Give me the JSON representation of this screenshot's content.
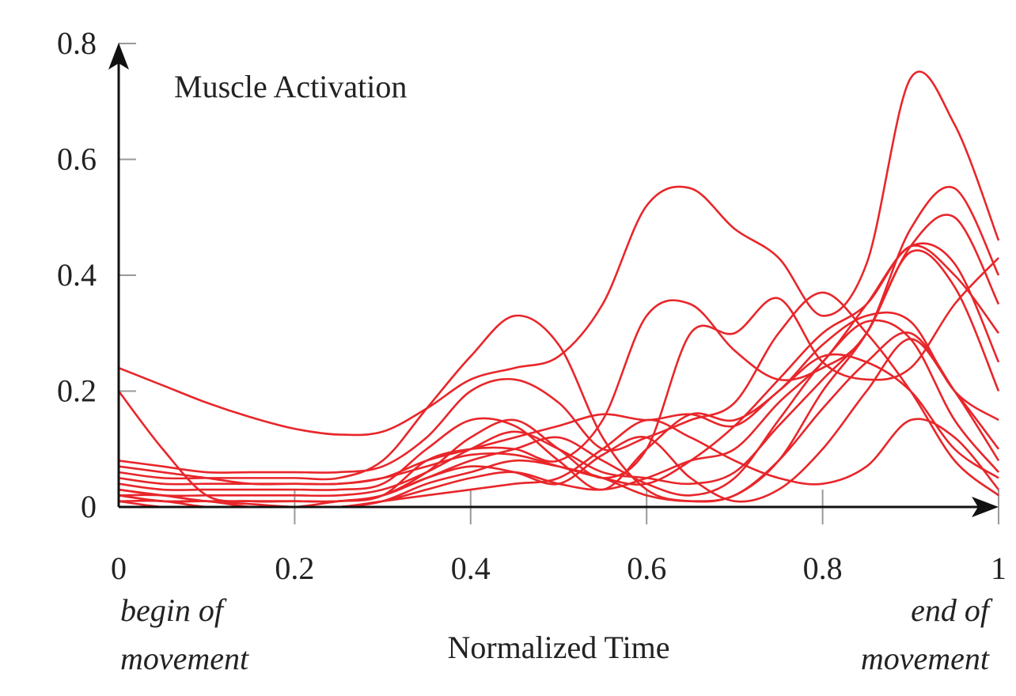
{
  "chart_data": {
    "type": "line",
    "title": "",
    "xlabel": "Normalized Time",
    "ylabel": "Muscle Activation",
    "annotations": {
      "begin": [
        "begin of",
        "movement"
      ],
      "end": [
        "end of",
        "movement"
      ]
    },
    "xlim": [
      0,
      1
    ],
    "ylim": [
      0,
      0.8
    ],
    "xticks": [
      0,
      0.2,
      0.4,
      0.6,
      0.8,
      1
    ],
    "xtick_labels": [
      "0",
      "0.2",
      "0.4",
      "0.6",
      "0.8",
      "1"
    ],
    "yticks": [
      0,
      0.2,
      0.4,
      0.6,
      0.8
    ],
    "ytick_labels": [
      "0",
      "0.2",
      "0.4",
      "0.6",
      "0.8"
    ],
    "grid": false,
    "line_color": "#e8262a",
    "x": [
      0,
      0.05,
      0.1,
      0.15,
      0.2,
      0.25,
      0.3,
      0.35,
      0.4,
      0.45,
      0.5,
      0.55,
      0.6,
      0.65,
      0.7,
      0.75,
      0.8,
      0.85,
      0.9,
      0.95,
      1.0
    ],
    "series": [
      {
        "values": [
          0.24,
          0.21,
          0.18,
          0.155,
          0.135,
          0.125,
          0.13,
          0.17,
          0.22,
          0.24,
          0.26,
          0.35,
          0.52,
          0.55,
          0.48,
          0.43,
          0.33,
          0.42,
          0.74,
          0.66,
          0.46
        ]
      },
      {
        "values": [
          0.06,
          0.05,
          0.05,
          0.05,
          0.05,
          0.05,
          0.08,
          0.17,
          0.26,
          0.33,
          0.28,
          0.12,
          0.03,
          0.01,
          0.02,
          0.08,
          0.2,
          0.3,
          0.45,
          0.5,
          0.35
        ]
      },
      {
        "values": [
          0.2,
          0.1,
          0.02,
          0.01,
          0.01,
          0.01,
          0.02,
          0.08,
          0.1,
          0.1,
          0.08,
          0.15,
          0.33,
          0.35,
          0.27,
          0.22,
          0.24,
          0.3,
          0.48,
          0.55,
          0.4
        ]
      },
      {
        "values": [
          0.03,
          0.02,
          0.01,
          0.005,
          0,
          0,
          0.01,
          0.04,
          0.06,
          0.08,
          0.07,
          0.05,
          0.02,
          0.01,
          0.02,
          0.08,
          0.17,
          0.25,
          0.3,
          0.2,
          0.08
        ]
      },
      {
        "values": [
          0.02,
          0.01,
          0.01,
          0,
          0,
          0,
          0.01,
          0.03,
          0.05,
          0.06,
          0.04,
          0.03,
          0.05,
          0.08,
          0.1,
          0.18,
          0.25,
          0.35,
          0.45,
          0.42,
          0.25
        ]
      },
      {
        "values": [
          0.08,
          0.07,
          0.06,
          0.06,
          0.06,
          0.06,
          0.07,
          0.12,
          0.2,
          0.22,
          0.18,
          0.1,
          0.12,
          0.15,
          0.18,
          0.3,
          0.37,
          0.3,
          0.2,
          0.08,
          0.02
        ]
      },
      {
        "values": [
          0.01,
          0.01,
          0,
          0,
          0,
          0.01,
          0.02,
          0.06,
          0.12,
          0.15,
          0.1,
          0.05,
          0.1,
          0.3,
          0.3,
          0.36,
          0.25,
          0.22,
          0.24,
          0.35,
          0.43
        ]
      },
      {
        "values": [
          0.04,
          0.03,
          0.03,
          0.03,
          0.03,
          0.03,
          0.04,
          0.1,
          0.15,
          0.14,
          0.08,
          0.03,
          0.1,
          0.16,
          0.15,
          0.2,
          0.28,
          0.33,
          0.32,
          0.2,
          0.15
        ]
      },
      {
        "values": [
          0.02,
          0.02,
          0.01,
          0.01,
          0.01,
          0.01,
          0.02,
          0.05,
          0.08,
          0.1,
          0.12,
          0.08,
          0.04,
          0.02,
          0.05,
          0.15,
          0.25,
          0.32,
          0.29,
          0.15,
          0.06
        ]
      },
      {
        "values": [
          0.07,
          0.06,
          0.05,
          0.04,
          0.04,
          0.04,
          0.05,
          0.08,
          0.1,
          0.12,
          0.14,
          0.16,
          0.15,
          0.16,
          0.14,
          0.2,
          0.26,
          0.25,
          0.2,
          0.1,
          0.05
        ]
      },
      {
        "values": [
          0.03,
          0.02,
          0.02,
          0.02,
          0.02,
          0.02,
          0.03,
          0.06,
          0.1,
          0.13,
          0.1,
          0.06,
          0.05,
          0.04,
          0.06,
          0.14,
          0.22,
          0.3,
          0.44,
          0.38,
          0.2
        ]
      },
      {
        "values": [
          0.01,
          0,
          0,
          0,
          0,
          0,
          0.01,
          0.02,
          0.03,
          0.04,
          0.05,
          0.1,
          0.15,
          0.12,
          0.08,
          0.05,
          0.04,
          0.07,
          0.15,
          0.12,
          0.03
        ]
      },
      {
        "values": [
          0.05,
          0.04,
          0.04,
          0.04,
          0.04,
          0.04,
          0.05,
          0.07,
          0.09,
          0.09,
          0.07,
          0.05,
          0.04,
          0.08,
          0.14,
          0.22,
          0.3,
          0.35,
          0.45,
          0.4,
          0.3
        ]
      },
      {
        "values": [
          0.02,
          0.01,
          0.01,
          0.01,
          0.01,
          0.01,
          0.02,
          0.05,
          0.07,
          0.06,
          0.04,
          0.09,
          0.12,
          0.05,
          0.01,
          0.03,
          0.1,
          0.2,
          0.29,
          0.2,
          0.1
        ]
      }
    ]
  }
}
